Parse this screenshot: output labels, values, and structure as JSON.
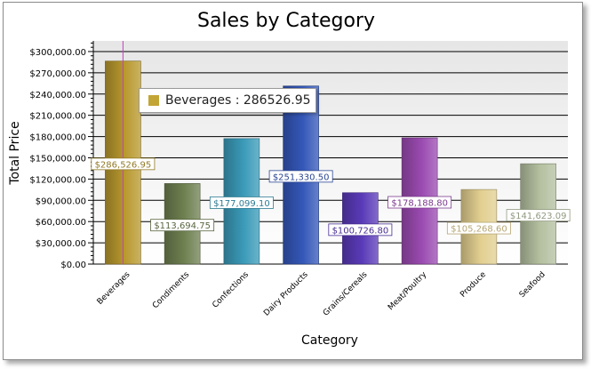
{
  "chart_data": {
    "type": "bar",
    "title": "Sales by Category",
    "xlabel": "Category",
    "ylabel": "Total Price",
    "ylim": [
      0,
      315000
    ],
    "yticks": [
      0,
      30000,
      60000,
      90000,
      120000,
      150000,
      180000,
      210000,
      240000,
      270000,
      300000
    ],
    "ytick_labels": [
      "$0.00",
      "$30,000.00",
      "$60,000.00",
      "$90,000.00",
      "$120,000.00",
      "$150,000.00",
      "$180,000.00",
      "$210,000.00",
      "$240,000.00",
      "$270,000.00",
      "$300,000.00"
    ],
    "categories": [
      "Beverages",
      "Condiments",
      "Confections",
      "Dairy Products",
      "Grains/Cereals",
      "Meat/Poultry",
      "Produce",
      "Seafood"
    ],
    "values": [
      286526.95,
      113694.75,
      177099.1,
      251330.5,
      100726.8,
      178188.8,
      105268.6,
      141623.09
    ],
    "data_labels": [
      "$286,526.95",
      "$113,694.75",
      "$177,099.10",
      "$251,330.50",
      "$100,726.80",
      "$178,188.80",
      "$105,268.60",
      "$141,623.09"
    ],
    "colors": [
      "#b8982e",
      "#6e8050",
      "#3a9ab8",
      "#3457b8",
      "#5a3ab8",
      "#9a4ab0",
      "#e2cf90",
      "#b4c0a0"
    ],
    "grid": true,
    "legend": "none"
  },
  "tooltip": {
    "label": "Beverages : 286526.95",
    "color": "#c3a535"
  }
}
